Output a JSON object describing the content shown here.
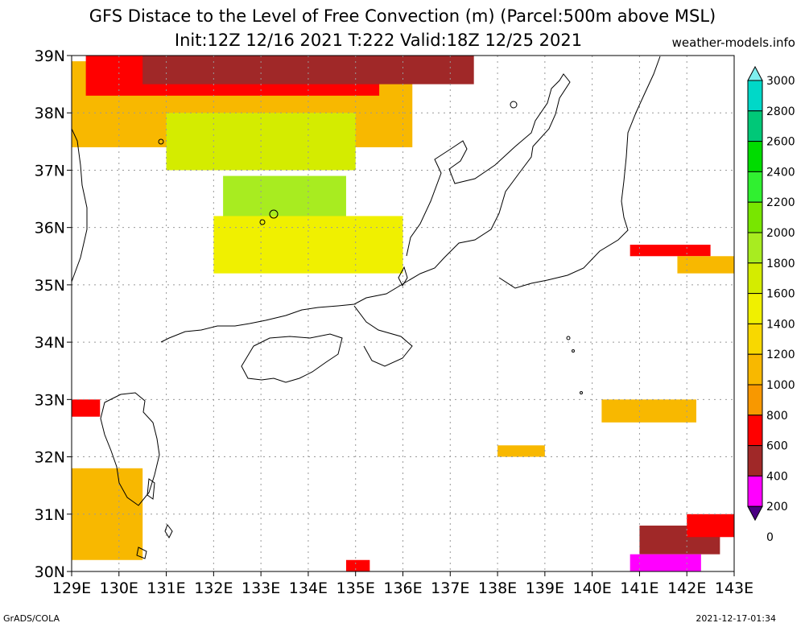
{
  "title_line1": "GFS Distace to the Level of Free Convection (m) (Parcel:500m above MSL)",
  "title_line2": "Init:12Z 12/16 2021 T:222 Valid:18Z 12/25 2021",
  "site": "weather-models.info",
  "footer_left": "GrADS/COLA",
  "footer_right": "2021-12-17-01:34",
  "lat_labels": [
    "39N",
    "38N",
    "37N",
    "36N",
    "35N",
    "34N",
    "33N",
    "32N",
    "31N",
    "30N"
  ],
  "lon_labels": [
    "129E",
    "130E",
    "131E",
    "132E",
    "133E",
    "134E",
    "135E",
    "136E",
    "137E",
    "138E",
    "139E",
    "140E",
    "141E",
    "142E",
    "143E"
  ],
  "colorbar": {
    "levels": [
      "3000",
      "2800",
      "2600",
      "2400",
      "2200",
      "2000",
      "1800",
      "1600",
      "1400",
      "1200",
      "1000",
      "800",
      "600",
      "400",
      "200",
      "0"
    ],
    "colors": [
      "#7ff0f0",
      "#00d8c8",
      "#00c878",
      "#00dc00",
      "#30f030",
      "#78e600",
      "#a8ec20",
      "#d4ec00",
      "#f0f000",
      "#f8d800",
      "#f8b800",
      "#f89800",
      "#ff0000",
      "#a02828",
      "#ff00ff",
      "#4b0082"
    ]
  },
  "map_data": {
    "lon_range": [
      129,
      143
    ],
    "lat_range": [
      30,
      39
    ],
    "field_patches": [
      {
        "color": "#f8b800",
        "lon": [
          129.0,
          136.2
        ],
        "lat": [
          37.4,
          38.9
        ]
      },
      {
        "color": "#d4ec00",
        "lon": [
          131.0,
          135.0
        ],
        "lat": [
          37.0,
          38.0
        ]
      },
      {
        "color": "#a8ec20",
        "lon": [
          132.2,
          134.8
        ],
        "lat": [
          35.6,
          36.9
        ]
      },
      {
        "color": "#f0f000",
        "lon": [
          132.0,
          136.0
        ],
        "lat": [
          35.2,
          36.2
        ]
      },
      {
        "color": "#ff0000",
        "lon": [
          129.3,
          135.5
        ],
        "lat": [
          38.3,
          39.0
        ]
      },
      {
        "color": "#a02828",
        "lon": [
          130.5,
          137.5
        ],
        "lat": [
          38.5,
          39.0
        ]
      },
      {
        "color": "#f8b800",
        "lon": [
          129.0,
          130.5
        ],
        "lat": [
          30.2,
          31.8
        ]
      },
      {
        "color": "#ff0000",
        "lon": [
          129.0,
          129.6
        ],
        "lat": [
          32.7,
          33.0
        ]
      },
      {
        "color": "#f8b800",
        "lon": [
          140.2,
          142.2
        ],
        "lat": [
          32.6,
          33.0
        ]
      },
      {
        "color": "#f8b800",
        "lon": [
          138.0,
          139.0
        ],
        "lat": [
          32.0,
          32.2
        ]
      },
      {
        "color": "#ff0000",
        "lon": [
          140.8,
          142.5
        ],
        "lat": [
          35.5,
          35.7
        ]
      },
      {
        "color": "#f8b800",
        "lon": [
          141.8,
          143.0
        ],
        "lat": [
          35.2,
          35.5
        ]
      },
      {
        "color": "#a02828",
        "lon": [
          141.0,
          142.7
        ],
        "lat": [
          30.3,
          30.8
        ]
      },
      {
        "color": "#ff0000",
        "lon": [
          142.0,
          143.0
        ],
        "lat": [
          30.6,
          31.0
        ]
      },
      {
        "color": "#ff00ff",
        "lon": [
          140.8,
          142.3
        ],
        "lat": [
          30.0,
          30.3
        ]
      },
      {
        "color": "#ff0000",
        "lon": [
          134.8,
          135.3
        ],
        "lat": [
          30.0,
          30.2
        ]
      }
    ]
  }
}
